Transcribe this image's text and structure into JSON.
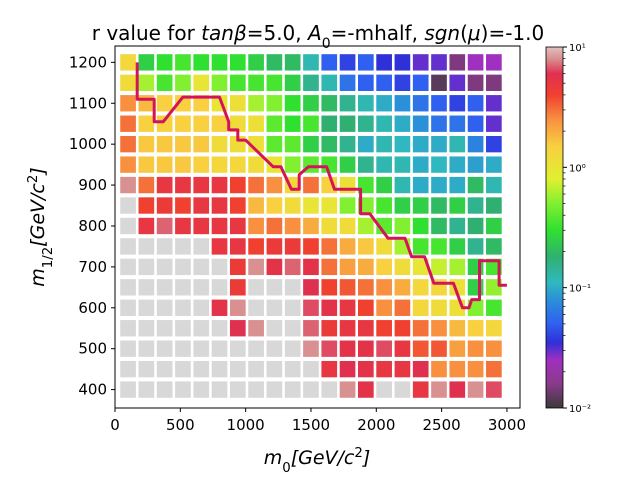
{
  "chart_data": {
    "type": "heatmap",
    "title": "r value for tanβ=5.0, A₀=-mhalf, sgn(μ)=-1.0",
    "title_parts": [
      {
        "text": "r value for ",
        "italic": false,
        "sub": false
      },
      {
        "text": "tanβ",
        "italic": true,
        "sub": false
      },
      {
        "text": "=5.0, ",
        "italic": false,
        "sub": false
      },
      {
        "text": "A",
        "italic": true,
        "sub": false
      },
      {
        "text": "0",
        "italic": false,
        "sub": true
      },
      {
        "text": "=-mhalf, ",
        "italic": false,
        "sub": false
      },
      {
        "text": "sgn",
        "italic": true,
        "sub": false
      },
      {
        "text": "(",
        "italic": false,
        "sub": false
      },
      {
        "text": "μ",
        "italic": true,
        "sub": false
      },
      {
        "text": ")=-1.0",
        "italic": false,
        "sub": false
      }
    ],
    "xlabel": "m₀[GeV/c²]",
    "ylabel": "m₁/₂[GeV/c²]",
    "xlabel_parts": [
      {
        "text": "m",
        "italic": true,
        "sub": false
      },
      {
        "text": "0",
        "italic": false,
        "sub": true
      },
      {
        "text": "[GeV/c",
        "italic": true,
        "sub": false
      },
      {
        "text": "2",
        "italic": false,
        "sup": true
      },
      {
        "text": "]",
        "italic": true,
        "sub": false
      }
    ],
    "ylabel_parts": [
      {
        "text": "m",
        "italic": true,
        "sub": false
      },
      {
        "text": "1/2",
        "italic": false,
        "sub": true
      },
      {
        "text": "[GeV/c",
        "italic": true,
        "sub": false
      },
      {
        "text": "2",
        "italic": false,
        "sup": true
      },
      {
        "text": "]",
        "italic": true,
        "sub": false
      }
    ],
    "xlim": [
      0,
      3100
    ],
    "ylim": [
      355,
      1240
    ],
    "xticks": [
      0,
      500,
      1000,
      1500,
      2000,
      2500,
      3000
    ],
    "yticks": [
      400,
      500,
      600,
      700,
      800,
      900,
      1000,
      1100,
      1200
    ],
    "x": [
      100,
      240,
      380,
      520,
      660,
      800,
      940,
      1080,
      1220,
      1360,
      1500,
      1640,
      1780,
      1920,
      2060,
      2200,
      2340,
      2480,
      2620,
      2760,
      2900
    ],
    "y": [
      400,
      450,
      500,
      550,
      600,
      650,
      700,
      750,
      800,
      850,
      900,
      950,
      1000,
      1050,
      1100,
      1150,
      1200
    ],
    "cell_size": [
      120,
      40
    ],
    "colors": {
      "excluded_gray": "#d8d8d8",
      "boundary": "#d4145a",
      "outline": "#000000"
    },
    "colorbar": {
      "scale": "log",
      "range": [
        0.01,
        10
      ],
      "ticks": [
        {
          "value": 0.01,
          "label": "10⁻²"
        },
        {
          "value": 0.1,
          "label": "10⁻¹"
        },
        {
          "value": 1,
          "label": "10⁰"
        },
        {
          "value": 10,
          "label": "10¹"
        }
      ],
      "stops": [
        {
          "value": 0.01,
          "color": "#3a3a3a"
        },
        {
          "value": 0.016,
          "color": "#8a3a8a"
        },
        {
          "value": 0.025,
          "color": "#a030c0"
        },
        {
          "value": 0.035,
          "color": "#3030d8"
        },
        {
          "value": 0.05,
          "color": "#3060f0"
        },
        {
          "value": 0.08,
          "color": "#2a90d8"
        },
        {
          "value": 0.11,
          "color": "#30b8c0"
        },
        {
          "value": 0.18,
          "color": "#30b070"
        },
        {
          "value": 0.3,
          "color": "#30e030"
        },
        {
          "value": 0.5,
          "color": "#80f030"
        },
        {
          "value": 0.8,
          "color": "#e0f030"
        },
        {
          "value": 1.5,
          "color": "#f8d040"
        },
        {
          "value": 2.5,
          "color": "#f89040"
        },
        {
          "value": 4,
          "color": "#f04030"
        },
        {
          "value": 6,
          "color": "#e03050"
        },
        {
          "value": 8,
          "color": "#d89090"
        },
        {
          "value": 10,
          "color": "#e0c0c0"
        }
      ]
    },
    "r_values": [
      [
        null,
        null,
        null,
        null,
        null,
        null,
        null,
        null,
        null,
        null,
        null,
        null,
        8,
        5.5,
        null,
        null,
        5,
        8,
        6,
        8,
        6.5
      ],
      [
        null,
        null,
        null,
        null,
        null,
        null,
        null,
        null,
        null,
        null,
        null,
        5,
        6,
        5.5,
        5,
        5,
        6,
        2.5,
        2.5,
        2.5,
        3
      ],
      [
        null,
        null,
        null,
        null,
        null,
        null,
        null,
        null,
        null,
        null,
        8,
        6.5,
        5.5,
        5.5,
        6.5,
        5,
        3.5,
        3.5,
        2.2,
        2.5,
        2.5
      ],
      [
        null,
        null,
        null,
        null,
        null,
        null,
        6,
        8,
        null,
        null,
        7,
        4.5,
        5,
        5,
        4,
        4,
        3,
        2.5,
        1.8,
        1.5,
        1.3
      ],
      [
        null,
        null,
        null,
        null,
        null,
        5.5,
        8,
        null,
        null,
        null,
        6.5,
        5.5,
        5,
        4,
        2.5,
        3,
        1.3,
        1.2,
        1.1,
        0.5,
        0.35
      ],
      [
        null,
        null,
        null,
        null,
        null,
        null,
        4.5,
        null,
        null,
        null,
        6,
        4,
        3.5,
        3,
        2.5,
        2,
        1.3,
        1.3,
        1.1,
        0.25,
        0.55
      ],
      [
        null,
        null,
        null,
        null,
        null,
        null,
        4.5,
        8,
        5.5,
        7,
        5.5,
        3,
        2.2,
        2,
        1.5,
        1.2,
        1,
        0.7,
        0.6,
        0.25,
        0.35
      ],
      [
        null,
        null,
        null,
        null,
        null,
        5,
        5,
        4,
        4.5,
        4.5,
        4,
        3,
        2,
        1.6,
        1.2,
        0.6,
        0.35,
        0.35,
        0.25,
        0.15,
        0.2
      ],
      [
        null,
        5,
        7,
        5,
        5,
        5,
        5,
        2.5,
        3,
        2.5,
        2,
        1.2,
        1.2,
        0.6,
        0.4,
        0.5,
        0.3,
        0.2,
        0.15,
        0.18,
        0.25
      ],
      [
        null,
        4,
        4.5,
        4,
        5,
        5,
        4,
        1.8,
        1.5,
        1.2,
        1,
        1,
        0.5,
        0.5,
        0.35,
        0.25,
        0.25,
        0.2,
        0.25,
        0.15,
        0.18
      ],
      [
        8,
        3,
        5,
        5,
        5,
        5,
        4,
        3,
        2.5,
        1.3,
        3,
        1.5,
        1.1,
        0.35,
        0.25,
        0.12,
        0.1,
        0.1,
        0.1,
        0.2,
        0.12
      ],
      [
        2.5,
        1.6,
        1.6,
        1.6,
        1.5,
        1.3,
        1.3,
        1.2,
        1,
        0.5,
        0.4,
        0.35,
        0.25,
        0.15,
        0.12,
        0.12,
        0.1,
        0.11,
        0.1,
        0.09,
        0.1
      ],
      [
        3,
        1.6,
        1.6,
        1.6,
        1.6,
        1.2,
        1.2,
        1.1,
        0.4,
        0.4,
        0.25,
        0.2,
        0.15,
        0.1,
        0.12,
        0.11,
        0.1,
        0.1,
        0.12,
        0.07,
        0.04
      ],
      [
        3,
        1.5,
        1.5,
        1.5,
        1.5,
        1.5,
        1.2,
        1.1,
        0.4,
        0.3,
        0.35,
        0.18,
        0.18,
        0.15,
        0.12,
        0.1,
        0.08,
        0.06,
        0.06,
        0.05,
        0.03
      ],
      [
        2.5,
        1.8,
        1.5,
        1.5,
        1.5,
        1,
        1.1,
        0.6,
        0.5,
        0.3,
        0.25,
        0.2,
        0.15,
        0.12,
        0.1,
        0.08,
        0.06,
        0.05,
        0.04,
        0.05,
        0.03
      ],
      [
        1.2,
        0.6,
        0.35,
        0.5,
        1,
        0.5,
        0.35,
        0.35,
        0.35,
        0.25,
        0.15,
        0.12,
        0.06,
        0.05,
        0.05,
        0.04,
        0.05,
        0.012,
        0.03,
        0.015,
        0.015
      ],
      [
        1.3,
        0.25,
        0.3,
        0.35,
        0.3,
        0.3,
        0.3,
        0.25,
        0.2,
        0.2,
        0.12,
        0.05,
        0.04,
        0.05,
        0.035,
        0.035,
        0.03,
        0.03,
        0.015,
        0.025,
        0.025
      ]
    ],
    "boundary_line": [
      [
        170,
        1200
      ],
      [
        170,
        1110
      ],
      [
        300,
        1110
      ],
      [
        300,
        1055
      ],
      [
        370,
        1055
      ],
      [
        520,
        1115
      ],
      [
        800,
        1115
      ],
      [
        870,
        1055
      ],
      [
        870,
        1035
      ],
      [
        940,
        1035
      ],
      [
        940,
        1010
      ],
      [
        1000,
        1010
      ],
      [
        1210,
        945
      ],
      [
        1270,
        945
      ],
      [
        1350,
        890
      ],
      [
        1410,
        890
      ],
      [
        1410,
        925
      ],
      [
        1480,
        945
      ],
      [
        1620,
        945
      ],
      [
        1680,
        890
      ],
      [
        1880,
        890
      ],
      [
        1880,
        830
      ],
      [
        1950,
        830
      ],
      [
        2090,
        770
      ],
      [
        2220,
        770
      ],
      [
        2270,
        725
      ],
      [
        2370,
        725
      ],
      [
        2440,
        660
      ],
      [
        2590,
        660
      ],
      [
        2660,
        600
      ],
      [
        2710,
        600
      ],
      [
        2730,
        620
      ],
      [
        2790,
        620
      ],
      [
        2790,
        715
      ],
      [
        2940,
        715
      ],
      [
        2940,
        655
      ],
      [
        3000,
        655
      ]
    ]
  }
}
